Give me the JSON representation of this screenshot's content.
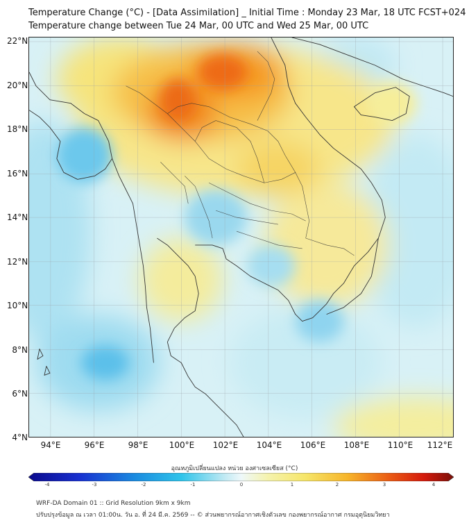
{
  "header": {
    "title_line1": "Temperature Change (°C) - [Data Assimilation] _ Initial Time : Monday 23 Mar, 18 UTC FCST+024",
    "title_line2": "Temperature change between Tue 24 Mar, 00 UTC and Wed 25 Mar, 00 UTC"
  },
  "map": {
    "lat_labels": [
      "22°N",
      "20°N",
      "18°N",
      "16°N",
      "14°N",
      "12°N",
      "10°N",
      "8°N",
      "6°N",
      "4°N"
    ],
    "lon_labels": [
      "94°E",
      "96°E",
      "98°E",
      "100°E",
      "102°E",
      "104°E",
      "106°E",
      "108°E",
      "110°E",
      "112°E"
    ],
    "lat_range": [
      4,
      22.2
    ],
    "lon_range": [
      93,
      112.5
    ]
  },
  "legend": {
    "title": "อุณหภูมิเปลี่ยนแปลง หน่วย องศาเซลเซียส (°C)",
    "ticks": [
      "-4",
      "-3",
      "-2",
      "-1",
      "0",
      "1",
      "2",
      "3",
      "4"
    ],
    "range": [
      -4,
      4
    ]
  },
  "footer": {
    "line1": "WRF-DA Domain 01 :: Grid Resolution 9km x 9km",
    "line2": "ปรับปรุงข้อมูล ณ เวลา 01:00น. วัน อ. ที่ 24 มี.ค. 2569 -- © ส่วนพยากรณ์อากาศเชิงตัวเลข กองพยากรณ์อากาศ กรมอุตุนิยมวิทยา"
  },
  "colors": {
    "neg_max": "#0a0a8c",
    "neg_mid": "#2bb5e8",
    "neutral": "#e6f7f9",
    "pos_low": "#f6ee8a",
    "pos_mid": "#f7b52a",
    "pos_high": "#e02510",
    "pos_max": "#7a0f08",
    "coast": "#333333",
    "grid": "#9aa0a6"
  }
}
